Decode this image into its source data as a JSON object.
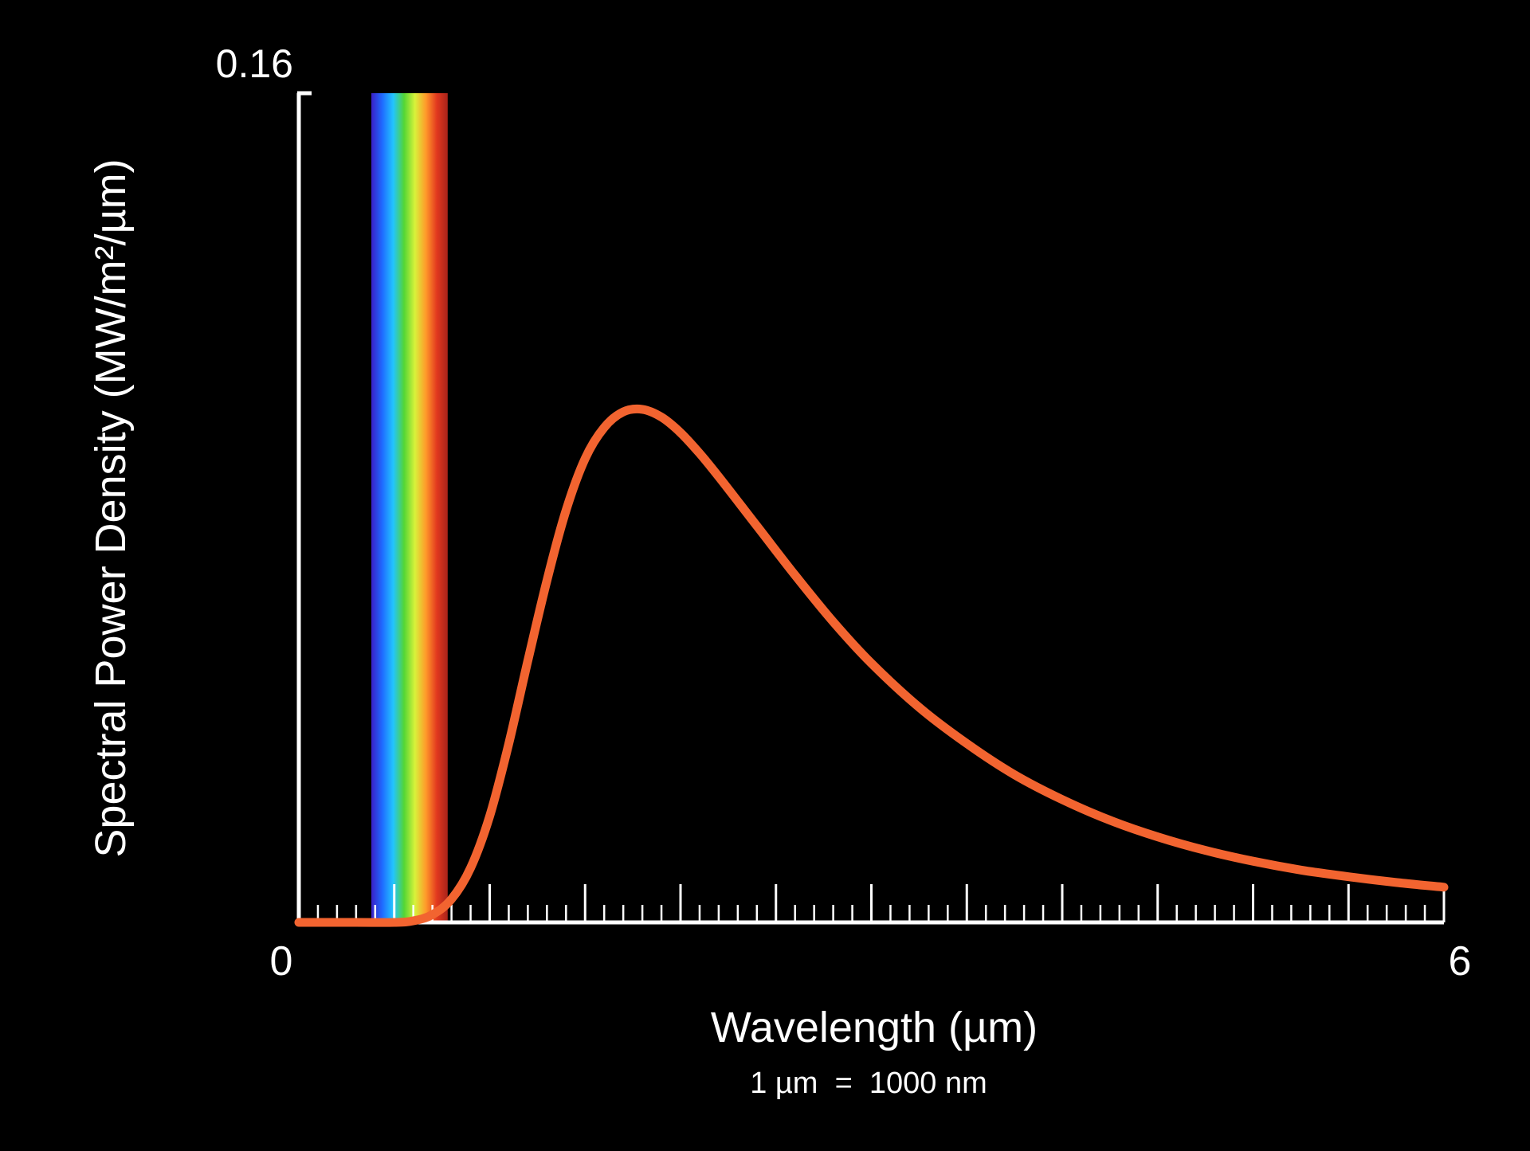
{
  "chart_data": {
    "type": "line",
    "title": "",
    "xlabel": "Wavelength (µm)",
    "xlabel_note": "1 µm  =  1000 nm",
    "ylabel": "Spectral Power Density (MW/m²/µm)",
    "xlim": [
      0,
      6
    ],
    "ylim": [
      0,
      0.16
    ],
    "x_tick_labels": [
      "0",
      "6"
    ],
    "y_tick_labels": [
      "0.16"
    ],
    "x_minor_tick_step": 0.1,
    "x_major_tick_step": 0.5,
    "grid": false,
    "visible_band": {
      "x_start": 0.38,
      "x_end": 0.78,
      "colors": [
        "#3a1fc8",
        "#1f6bff",
        "#22c4ff",
        "#54d634",
        "#d8f23a",
        "#ff9a2a",
        "#e2391f",
        "#a8231a"
      ]
    },
    "series": [
      {
        "color": "#f26430",
        "x": [
          0.0,
          0.3,
          0.5,
          0.6,
          0.7,
          0.8,
          0.9,
          1.0,
          1.1,
          1.2,
          1.3,
          1.4,
          1.5,
          1.6,
          1.7,
          1.8,
          1.9,
          2.0,
          2.1,
          2.2,
          2.4,
          2.6,
          2.8,
          3.0,
          3.25,
          3.5,
          3.75,
          4.0,
          4.25,
          4.5,
          4.75,
          5.0,
          5.25,
          5.5,
          5.75,
          6.0
        ],
        "y": [
          0.0,
          0.0,
          0.0,
          0.0003,
          0.0015,
          0.0045,
          0.0105,
          0.0205,
          0.0345,
          0.0505,
          0.066,
          0.0795,
          0.0895,
          0.0955,
          0.0985,
          0.099,
          0.0975,
          0.0945,
          0.0905,
          0.086,
          0.0765,
          0.067,
          0.058,
          0.05,
          0.0415,
          0.0345,
          0.0285,
          0.0237,
          0.0197,
          0.0165,
          0.0139,
          0.0118,
          0.0101,
          0.0088,
          0.0077,
          0.0068
        ]
      }
    ]
  }
}
